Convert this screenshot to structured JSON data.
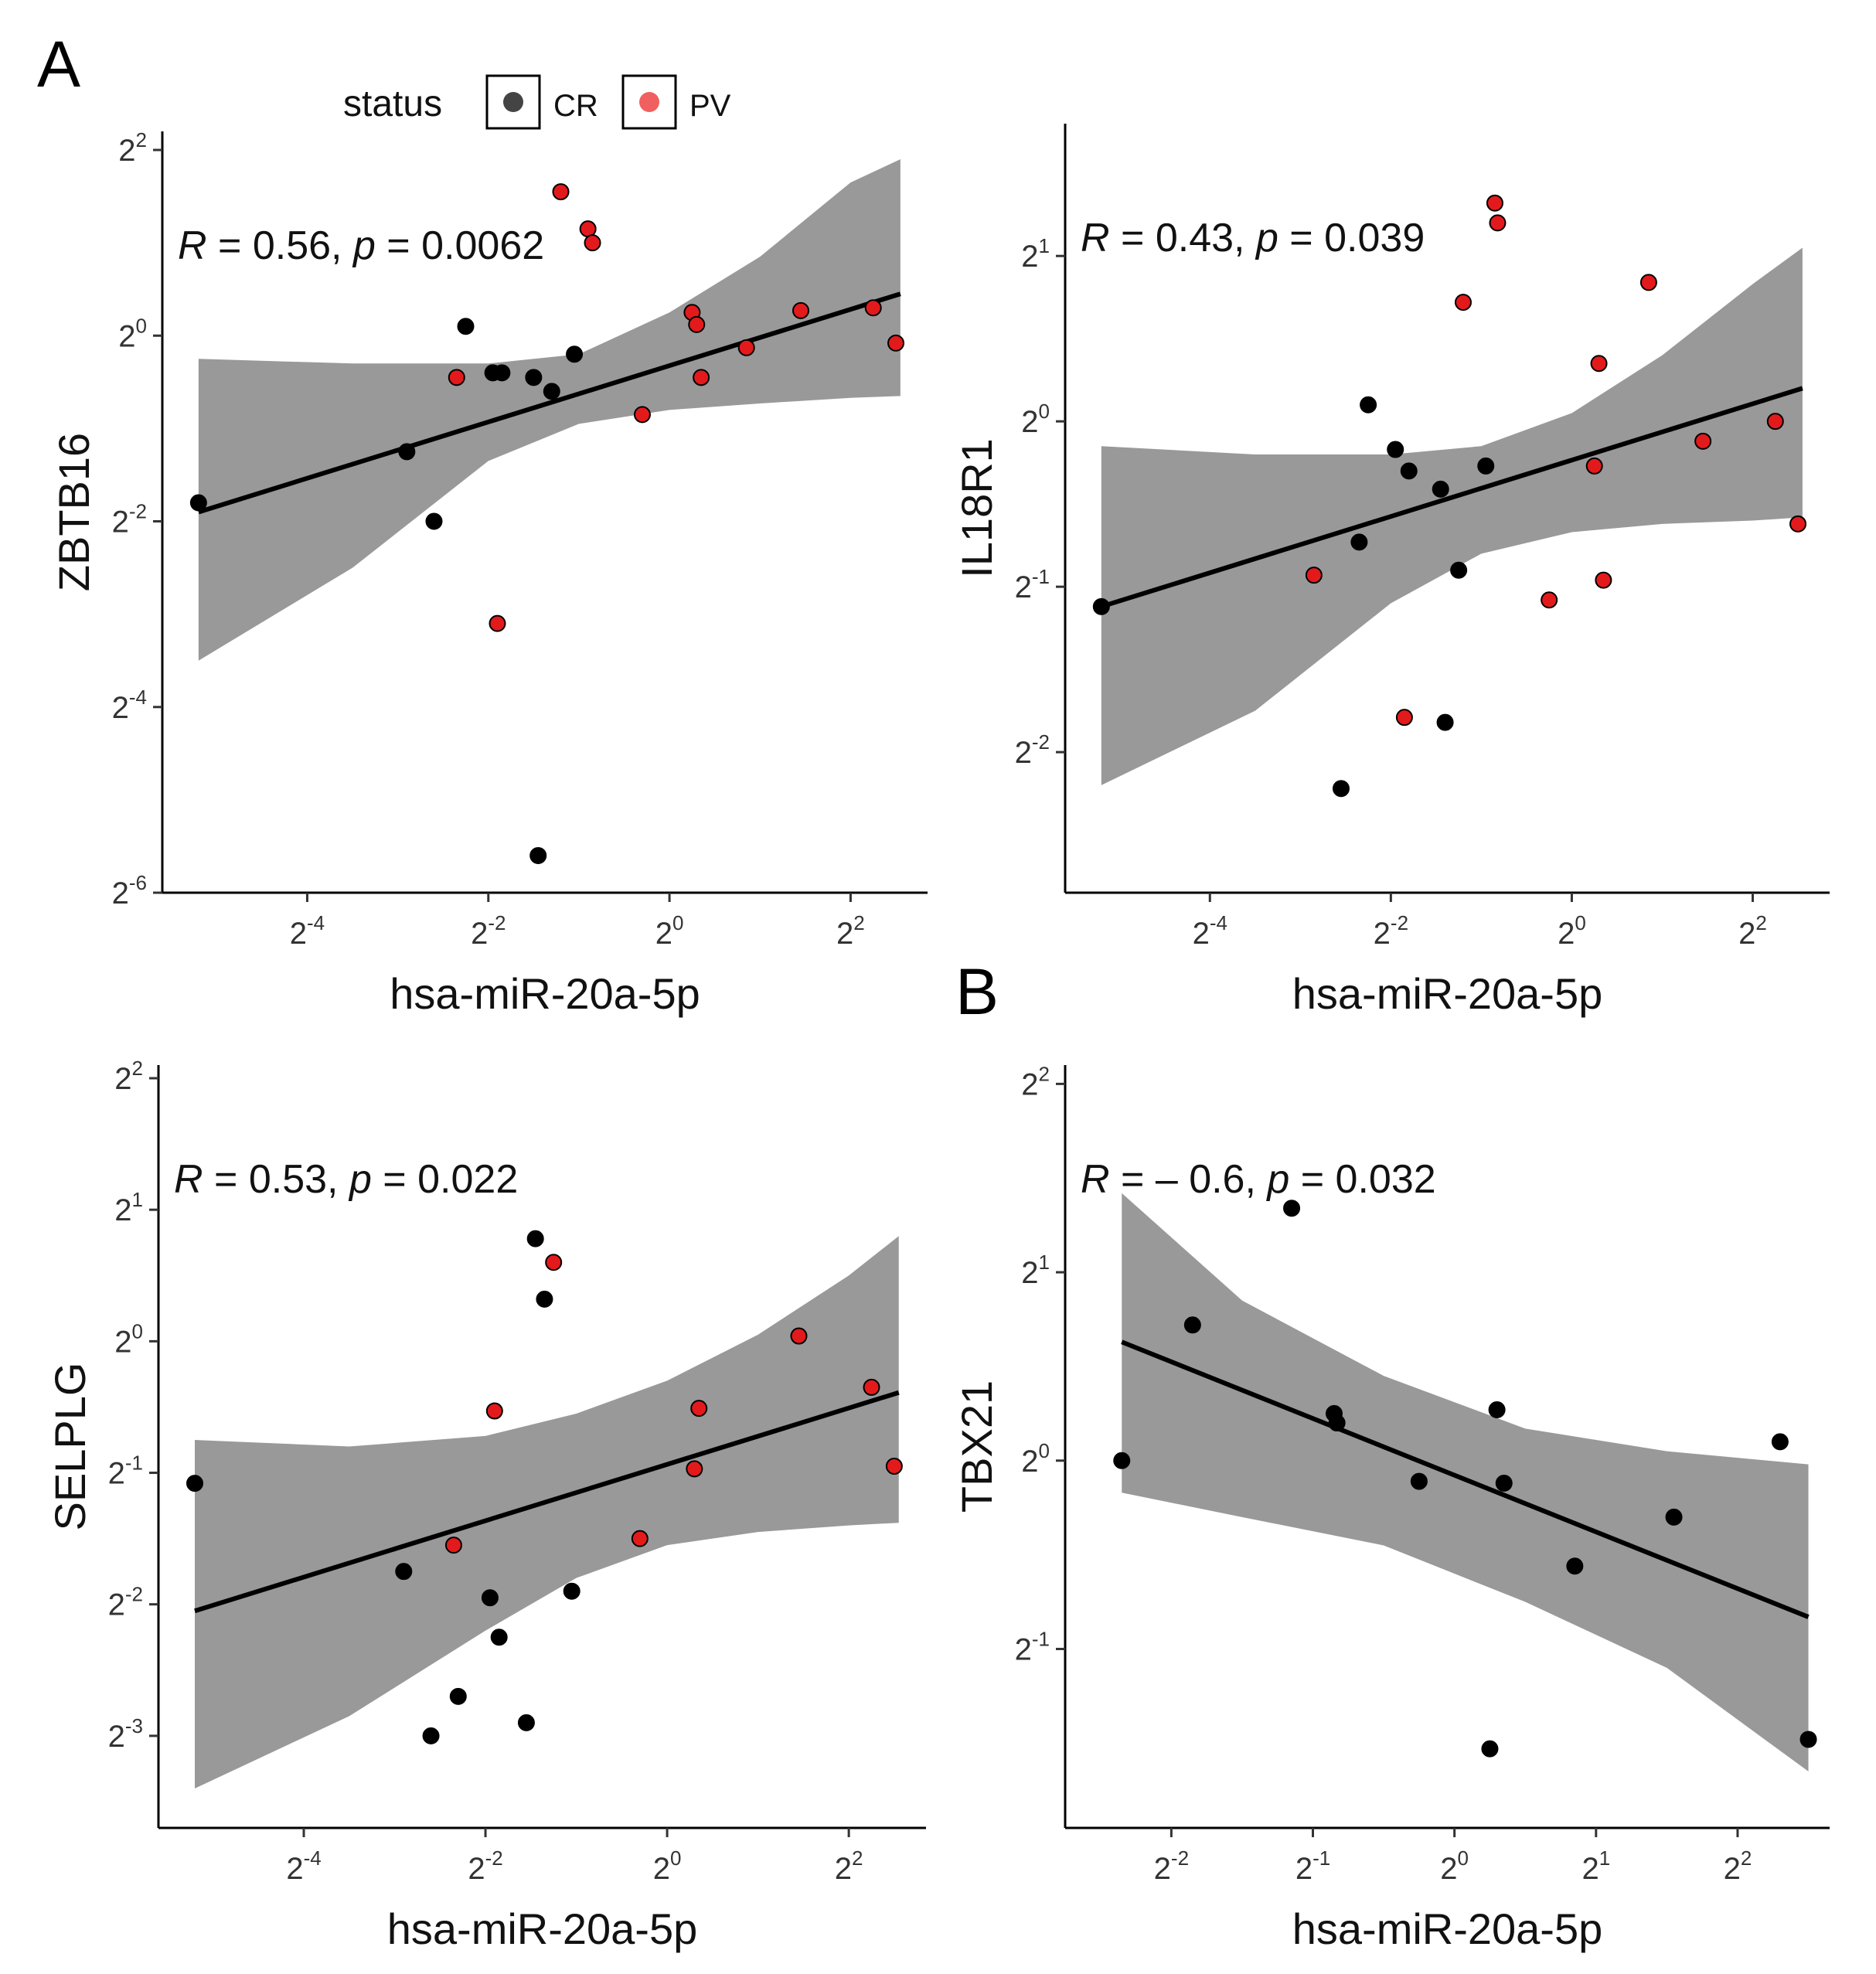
{
  "figure": {
    "panel_labels": [
      "A",
      "B"
    ],
    "colors": {
      "CR": "#000000",
      "PV": "#e31a1c",
      "ribbon": "#999999",
      "fit_line": "#000000"
    }
  },
  "legend": {
    "title": "status",
    "items": [
      {
        "label": "CR",
        "color": "#000000"
      },
      {
        "label": "PV",
        "color": "#e31a1c"
      }
    ]
  },
  "chart_data": [
    {
      "id": "A1",
      "type": "scatter",
      "xlabel": "hsa-miR-20a-5p",
      "ylabel": "ZBTB16",
      "scale": "log2",
      "annotation": {
        "r": "0.56",
        "p": "0.0062"
      },
      "xlim": [
        -5.6,
        2.85
      ],
      "ylim": [
        -6.0,
        2.2
      ],
      "xticks": [
        {
          "v": -4,
          "base": "2",
          "exp": "-4"
        },
        {
          "v": -2,
          "base": "2",
          "exp": "-2"
        },
        {
          "v": 0,
          "base": "2",
          "exp": "0"
        },
        {
          "v": 2,
          "base": "2",
          "exp": "2"
        }
      ],
      "yticks": [
        {
          "v": -6,
          "base": "2",
          "exp": "-6"
        },
        {
          "v": -4,
          "base": "2",
          "exp": "-4"
        },
        {
          "v": -2,
          "base": "2",
          "exp": "-2"
        },
        {
          "v": 0,
          "base": "2",
          "exp": "0"
        },
        {
          "v": 2,
          "base": "2",
          "exp": "2"
        }
      ],
      "fit": {
        "x": [
          -5.2,
          2.55
        ],
        "y": [
          -1.9,
          0.45
        ]
      },
      "band": {
        "x": [
          -5.2,
          -3.5,
          -2.0,
          -1.0,
          0.0,
          1.0,
          2.0,
          2.55
        ],
        "lower": [
          -3.5,
          -2.5,
          -1.35,
          -0.95,
          -0.8,
          -0.73,
          -0.67,
          -0.65
        ],
        "upper": [
          -0.25,
          -0.3,
          -0.3,
          -0.2,
          0.25,
          0.85,
          1.65,
          1.9
        ]
      },
      "points": [
        {
          "x": -5.2,
          "y": -1.8,
          "g": "CR"
        },
        {
          "x": -2.9,
          "y": -1.25,
          "g": "CR"
        },
        {
          "x": -2.6,
          "y": -2.0,
          "g": "CR"
        },
        {
          "x": -2.25,
          "y": 0.1,
          "g": "CR"
        },
        {
          "x": -1.95,
          "y": -0.4,
          "g": "CR"
        },
        {
          "x": -1.85,
          "y": -0.4,
          "g": "CR"
        },
        {
          "x": -1.5,
          "y": -0.45,
          "g": "CR"
        },
        {
          "x": -1.3,
          "y": -0.6,
          "g": "CR"
        },
        {
          "x": -1.45,
          "y": -5.6,
          "g": "CR"
        },
        {
          "x": -1.05,
          "y": -0.2,
          "g": "CR"
        },
        {
          "x": -2.35,
          "y": -0.45,
          "g": "PV"
        },
        {
          "x": -1.9,
          "y": -3.1,
          "g": "PV"
        },
        {
          "x": -1.2,
          "y": 1.55,
          "g": "PV"
        },
        {
          "x": -0.9,
          "y": 1.15,
          "g": "PV"
        },
        {
          "x": -0.85,
          "y": 1.0,
          "g": "PV"
        },
        {
          "x": -0.3,
          "y": -0.85,
          "g": "PV"
        },
        {
          "x": 0.25,
          "y": 0.25,
          "g": "PV"
        },
        {
          "x": 0.3,
          "y": 0.12,
          "g": "PV"
        },
        {
          "x": 0.35,
          "y": -0.45,
          "g": "PV"
        },
        {
          "x": 0.85,
          "y": -0.13,
          "g": "PV"
        },
        {
          "x": 1.45,
          "y": 0.27,
          "g": "PV"
        },
        {
          "x": 2.25,
          "y": 0.3,
          "g": "PV"
        },
        {
          "x": 2.5,
          "y": -0.08,
          "g": "PV"
        }
      ]
    },
    {
      "id": "A2",
      "type": "scatter",
      "xlabel": "hsa-miR-20a-5p",
      "ylabel": "IL18R1",
      "scale": "log2",
      "annotation": {
        "r": "0.43",
        "p": "0.039"
      },
      "xlim": [
        -5.6,
        2.85
      ],
      "ylim": [
        -2.85,
        1.8
      ],
      "xticks": [
        {
          "v": -4,
          "base": "2",
          "exp": "-4"
        },
        {
          "v": -2,
          "base": "2",
          "exp": "-2"
        },
        {
          "v": 0,
          "base": "2",
          "exp": "0"
        },
        {
          "v": 2,
          "base": "2",
          "exp": "2"
        }
      ],
      "yticks": [
        {
          "v": -2,
          "base": "2",
          "exp": "-2"
        },
        {
          "v": -1,
          "base": "2",
          "exp": "-1"
        },
        {
          "v": 0,
          "base": "2",
          "exp": "0"
        },
        {
          "v": 1,
          "base": "2",
          "exp": "1"
        }
      ],
      "fit": {
        "x": [
          -5.2,
          2.55
        ],
        "y": [
          -1.12,
          0.2
        ]
      },
      "band": {
        "x": [
          -5.2,
          -3.5,
          -2.0,
          -1.0,
          0.0,
          1.0,
          2.0,
          2.55
        ],
        "lower": [
          -2.2,
          -1.75,
          -1.1,
          -0.8,
          -0.67,
          -0.62,
          -0.6,
          -0.58
        ],
        "upper": [
          -0.15,
          -0.2,
          -0.2,
          -0.15,
          0.05,
          0.4,
          0.83,
          1.05
        ]
      },
      "points": [
        {
          "x": -5.2,
          "y": -1.12,
          "g": "CR"
        },
        {
          "x": -2.55,
          "y": -2.22,
          "g": "CR"
        },
        {
          "x": -2.35,
          "y": -0.73,
          "g": "CR"
        },
        {
          "x": -2.25,
          "y": 0.1,
          "g": "CR"
        },
        {
          "x": -1.95,
          "y": -0.17,
          "g": "CR"
        },
        {
          "x": -1.8,
          "y": -0.3,
          "g": "CR"
        },
        {
          "x": -1.45,
          "y": -0.41,
          "g": "CR"
        },
        {
          "x": -1.4,
          "y": -1.82,
          "g": "CR"
        },
        {
          "x": -1.25,
          "y": -0.9,
          "g": "CR"
        },
        {
          "x": -0.95,
          "y": -0.27,
          "g": "CR"
        },
        {
          "x": -2.85,
          "y": -0.93,
          "g": "PV"
        },
        {
          "x": -1.85,
          "y": -1.79,
          "g": "PV"
        },
        {
          "x": -1.2,
          "y": 0.72,
          "g": "PV"
        },
        {
          "x": -0.85,
          "y": 1.32,
          "g": "PV"
        },
        {
          "x": -0.82,
          "y": 1.2,
          "g": "PV"
        },
        {
          "x": -0.25,
          "y": -1.08,
          "g": "PV"
        },
        {
          "x": 0.25,
          "y": -0.27,
          "g": "PV"
        },
        {
          "x": 0.3,
          "y": 0.35,
          "g": "PV"
        },
        {
          "x": 0.35,
          "y": -0.96,
          "g": "PV"
        },
        {
          "x": 0.85,
          "y": 0.84,
          "g": "PV"
        },
        {
          "x": 1.45,
          "y": -0.12,
          "g": "PV"
        },
        {
          "x": 2.25,
          "y": 0.0,
          "g": "PV"
        },
        {
          "x": 2.5,
          "y": -0.62,
          "g": "PV"
        }
      ]
    },
    {
      "id": "A3",
      "type": "scatter",
      "xlabel": "hsa-miR-20a-5p",
      "ylabel": "SELPLG",
      "scale": "log2",
      "annotation": {
        "r": "0.53",
        "p": "0.022"
      },
      "xlim": [
        -5.6,
        2.85
      ],
      "ylim": [
        -3.7,
        2.1
      ],
      "xticks": [
        {
          "v": -4,
          "base": "2",
          "exp": "-4"
        },
        {
          "v": -2,
          "base": "2",
          "exp": "-2"
        },
        {
          "v": 0,
          "base": "2",
          "exp": "0"
        },
        {
          "v": 2,
          "base": "2",
          "exp": "2"
        }
      ],
      "yticks": [
        {
          "v": -3,
          "base": "2",
          "exp": "-3"
        },
        {
          "v": -2,
          "base": "2",
          "exp": "-2"
        },
        {
          "v": -1,
          "base": "2",
          "exp": "-1"
        },
        {
          "v": 0,
          "base": "2",
          "exp": "0"
        },
        {
          "v": 1,
          "base": "2",
          "exp": "1"
        },
        {
          "v": 2,
          "base": "2",
          "exp": "2"
        }
      ],
      "fit": {
        "x": [
          -5.2,
          2.55
        ],
        "y": [
          -2.05,
          -0.39
        ]
      },
      "band": {
        "x": [
          -5.2,
          -3.5,
          -2.0,
          -1.0,
          0.0,
          1.0,
          2.0,
          2.55
        ],
        "lower": [
          -3.4,
          -2.85,
          -2.2,
          -1.8,
          -1.55,
          -1.45,
          -1.4,
          -1.38
        ],
        "upper": [
          -0.75,
          -0.8,
          -0.72,
          -0.55,
          -0.3,
          0.05,
          0.5,
          0.8
        ]
      },
      "points": [
        {
          "x": -5.2,
          "y": -1.08,
          "g": "CR"
        },
        {
          "x": -2.9,
          "y": -1.75,
          "g": "CR"
        },
        {
          "x": -2.6,
          "y": -3.0,
          "g": "CR"
        },
        {
          "x": -2.3,
          "y": -2.7,
          "g": "CR"
        },
        {
          "x": -1.95,
          "y": -1.95,
          "g": "CR"
        },
        {
          "x": -1.85,
          "y": -2.25,
          "g": "CR"
        },
        {
          "x": -1.45,
          "y": 0.78,
          "g": "CR"
        },
        {
          "x": -1.55,
          "y": -2.9,
          "g": "CR"
        },
        {
          "x": -1.35,
          "y": 0.32,
          "g": "CR"
        },
        {
          "x": -1.05,
          "y": -1.9,
          "g": "CR"
        },
        {
          "x": -2.35,
          "y": -1.55,
          "g": "PV"
        },
        {
          "x": -1.9,
          "y": -0.53,
          "g": "PV"
        },
        {
          "x": -1.25,
          "y": 0.6,
          "g": "PV"
        },
        {
          "x": -0.3,
          "y": -1.5,
          "g": "PV"
        },
        {
          "x": 0.3,
          "y": -0.97,
          "g": "PV"
        },
        {
          "x": 0.35,
          "y": -0.51,
          "g": "PV"
        },
        {
          "x": 1.45,
          "y": 0.04,
          "g": "PV"
        },
        {
          "x": 2.25,
          "y": -0.35,
          "g": "PV"
        },
        {
          "x": 2.5,
          "y": -0.95,
          "g": "PV"
        }
      ]
    },
    {
      "id": "B",
      "type": "scatter",
      "xlabel": "hsa-miR-20a-5p",
      "ylabel": "TBX21",
      "scale": "log2",
      "annotation": {
        "r": "– 0.6",
        "p": "0.032"
      },
      "xlim": [
        -2.75,
        2.65
      ],
      "ylim": [
        -1.95,
        2.1
      ],
      "xticks": [
        {
          "v": -2,
          "base": "2",
          "exp": "-2"
        },
        {
          "v": -1,
          "base": "2",
          "exp": "-1"
        },
        {
          "v": 0,
          "base": "2",
          "exp": "0"
        },
        {
          "v": 1,
          "base": "2",
          "exp": "1"
        },
        {
          "v": 2,
          "base": "2",
          "exp": "2"
        }
      ],
      "yticks": [
        {
          "v": -1,
          "base": "2",
          "exp": "-1"
        },
        {
          "v": 0,
          "base": "2",
          "exp": "0"
        },
        {
          "v": 1,
          "base": "2",
          "exp": "1"
        },
        {
          "v": 2,
          "base": "2",
          "exp": "2"
        }
      ],
      "fit": {
        "x": [
          -2.35,
          2.5
        ],
        "y": [
          0.63,
          -0.83
        ]
      },
      "band": {
        "x": [
          -2.35,
          -1.5,
          -0.5,
          0.5,
          1.5,
          2.5
        ],
        "lower": [
          -0.17,
          -0.3,
          -0.45,
          -0.75,
          -1.1,
          -1.65
        ],
        "upper": [
          1.42,
          0.85,
          0.45,
          0.17,
          0.05,
          -0.02
        ]
      },
      "points": [
        {
          "x": -2.35,
          "y": 0.0,
          "g": "CR"
        },
        {
          "x": -1.85,
          "y": 0.72,
          "g": "CR"
        },
        {
          "x": -1.15,
          "y": 1.34,
          "g": "CR"
        },
        {
          "x": -0.85,
          "y": 0.25,
          "g": "CR"
        },
        {
          "x": -0.83,
          "y": 0.2,
          "g": "CR"
        },
        {
          "x": -0.25,
          "y": -0.11,
          "g": "CR"
        },
        {
          "x": 0.3,
          "y": 0.27,
          "g": "CR"
        },
        {
          "x": 0.25,
          "y": -1.53,
          "g": "CR"
        },
        {
          "x": 0.35,
          "y": -0.12,
          "g": "CR"
        },
        {
          "x": 0.85,
          "y": -0.56,
          "g": "CR"
        },
        {
          "x": 1.55,
          "y": -0.3,
          "g": "CR"
        },
        {
          "x": 2.3,
          "y": 0.1,
          "g": "CR"
        },
        {
          "x": 2.5,
          "y": -1.48,
          "g": "CR"
        }
      ]
    }
  ]
}
